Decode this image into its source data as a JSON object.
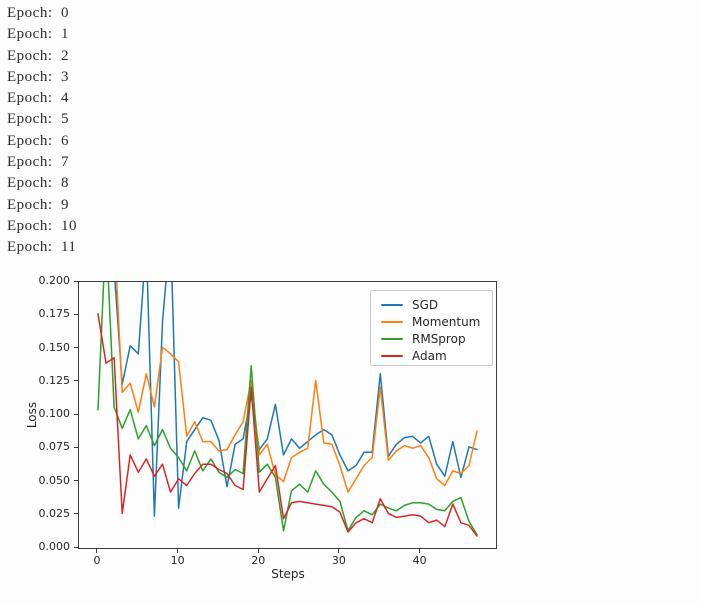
{
  "console": {
    "lines": [
      "Epoch:  0",
      "Epoch:  1",
      "Epoch:  2",
      "Epoch:  3",
      "Epoch:  4",
      "Epoch:  5",
      "Epoch:  6",
      "Epoch:  7",
      "Epoch:  8",
      "Epoch:  9",
      "Epoch:  10",
      "Epoch:  11"
    ]
  },
  "chart_data": {
    "type": "line",
    "title": "",
    "xlabel": "Steps",
    "ylabel": "Loss",
    "x_range": [
      0,
      47
    ],
    "xlim": [
      -2.35,
      49.35
    ],
    "ylim": [
      0.0,
      0.2
    ],
    "x_ticks": [
      0,
      10,
      20,
      30,
      40
    ],
    "y_ticks": [
      {
        "value": 0.0,
        "label": "0.000"
      },
      {
        "value": 0.025,
        "label": "0.025"
      },
      {
        "value": 0.05,
        "label": "0.050"
      },
      {
        "value": 0.075,
        "label": "0.075"
      },
      {
        "value": 0.1,
        "label": "0.100"
      },
      {
        "value": 0.125,
        "label": "0.125"
      },
      {
        "value": 0.15,
        "label": "0.150"
      },
      {
        "value": 0.175,
        "label": "0.175"
      },
      {
        "value": 0.2,
        "label": "0.200"
      }
    ],
    "grid": false,
    "legend_position": "upper right",
    "series": [
      {
        "name": "SGD",
        "color": "#1f77b4",
        "values": [
          0.27,
          0.32,
          0.21,
          0.123,
          0.152,
          0.146,
          0.23,
          0.024,
          0.17,
          0.24,
          0.03,
          0.08,
          0.089,
          0.098,
          0.096,
          0.081,
          0.046,
          0.078,
          0.082,
          0.115,
          0.074,
          0.082,
          0.108,
          0.07,
          0.082,
          0.075,
          0.08,
          0.085,
          0.089,
          0.085,
          0.07,
          0.058,
          0.062,
          0.072,
          0.072,
          0.131,
          0.069,
          0.078,
          0.083,
          0.084,
          0.079,
          0.084,
          0.063,
          0.054,
          0.08,
          0.053,
          0.076,
          0.074
        ]
      },
      {
        "name": "Momentum",
        "color": "#ff7f0e",
        "values": [
          0.35,
          0.3,
          0.24,
          0.117,
          0.124,
          0.102,
          0.131,
          0.106,
          0.151,
          0.146,
          0.14,
          0.084,
          0.095,
          0.08,
          0.08,
          0.073,
          0.074,
          0.085,
          0.095,
          0.126,
          0.07,
          0.078,
          0.055,
          0.05,
          0.068,
          0.072,
          0.075,
          0.126,
          0.079,
          0.078,
          0.062,
          0.042,
          0.052,
          0.062,
          0.068,
          0.121,
          0.066,
          0.073,
          0.077,
          0.075,
          0.077,
          0.068,
          0.052,
          0.047,
          0.058,
          0.056,
          0.062,
          0.088
        ]
      },
      {
        "name": "RMSprop",
        "color": "#2ca02c",
        "values": [
          0.104,
          0.24,
          0.106,
          0.09,
          0.104,
          0.082,
          0.092,
          0.077,
          0.089,
          0.075,
          0.068,
          0.058,
          0.073,
          0.058,
          0.067,
          0.057,
          0.053,
          0.059,
          0.056,
          0.137,
          0.057,
          0.063,
          0.053,
          0.013,
          0.043,
          0.048,
          0.042,
          0.058,
          0.048,
          0.042,
          0.035,
          0.013,
          0.023,
          0.028,
          0.025,
          0.033,
          0.03,
          0.028,
          0.032,
          0.034,
          0.034,
          0.033,
          0.029,
          0.028,
          0.035,
          0.038,
          0.02,
          0.01
        ]
      },
      {
        "name": "Adam",
        "color": "#d62728",
        "values": [
          0.176,
          0.139,
          0.143,
          0.026,
          0.07,
          0.057,
          0.067,
          0.054,
          0.063,
          0.042,
          0.052,
          0.047,
          0.056,
          0.063,
          0.063,
          0.059,
          0.056,
          0.047,
          0.044,
          0.121,
          0.042,
          0.052,
          0.062,
          0.022,
          0.034,
          0.035,
          0.034,
          0.033,
          0.032,
          0.031,
          0.027,
          0.012,
          0.019,
          0.022,
          0.019,
          0.037,
          0.026,
          0.023,
          0.024,
          0.025,
          0.024,
          0.019,
          0.021,
          0.016,
          0.033,
          0.019,
          0.017,
          0.009
        ]
      }
    ]
  },
  "colors": {
    "spine": "#3c3c3c",
    "tick_text": "#262626",
    "console_text": "#2e2e2e",
    "legend_border": "#cccccc"
  }
}
